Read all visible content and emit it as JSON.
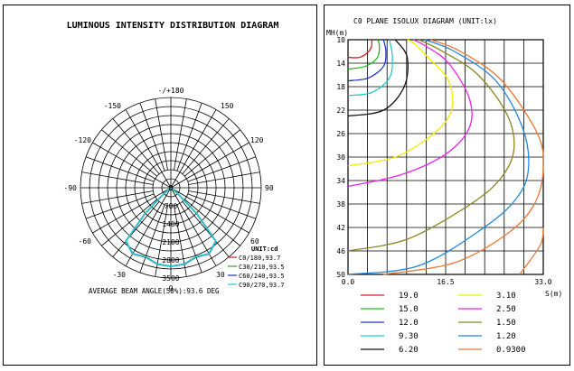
{
  "chart_data": [
    {
      "type": "polar-line",
      "title": "LUMINOUS INTENSITY DISTRIBUTION DIAGRAM",
      "angle_labels": {
        "top": "-/+180",
        "tl": "-150",
        "tr": "150",
        "ul": "-120",
        "ur": "120",
        "ml": "-90",
        "mr": "90",
        "ll": "-60",
        "lr": "60",
        "bl": "-30",
        "br": "30",
        "bottom": "0"
      },
      "radial_labels": [
        "0",
        "700",
        "1400",
        "2100",
        "2800",
        "3500"
      ],
      "rmax": 3500,
      "legend_title": "UNIT:cd",
      "series": [
        {
          "name": "C0/180,93.7",
          "color": "#cc2222",
          "angles": [
            0,
            10,
            20,
            30,
            40,
            45,
            50,
            60
          ],
          "values": [
            3050,
            3000,
            2850,
            2950,
            2700,
            1400,
            300,
            0
          ]
        },
        {
          "name": "C30/210,93.5",
          "color": "#22aa22",
          "angles": [
            0,
            10,
            20,
            30,
            40,
            45,
            50,
            60
          ],
          "values": [
            3050,
            3000,
            2850,
            2960,
            2700,
            1400,
            300,
            0
          ]
        },
        {
          "name": "C60/240,93.5",
          "color": "#2233cc",
          "angles": [
            0,
            10,
            20,
            30,
            40,
            45,
            50,
            60
          ],
          "values": [
            3050,
            3010,
            2860,
            2960,
            2710,
            1420,
            300,
            0
          ]
        },
        {
          "name": "C90/270,93.7",
          "color": "#22cccc",
          "angles": [
            0,
            10,
            20,
            30,
            40,
            45,
            50,
            60
          ],
          "values": [
            3050,
            3000,
            2850,
            2950,
            2700,
            1400,
            300,
            0
          ]
        }
      ],
      "footer": "AVERAGE BEAM ANGLE(50%):93.6 DEG"
    },
    {
      "type": "line",
      "title": "C0 PLANE ISOLUX DIAGRAM (UNIT:lx)",
      "ylabel": "MH(m)",
      "xlabel": "S(m)",
      "y_ticks": [
        "10",
        "14",
        "18",
        "22",
        "26",
        "30",
        "34",
        "38",
        "42",
        "46",
        "50"
      ],
      "x_ticks": [
        "0.0",
        "16.5",
        "33.0"
      ],
      "ylim": [
        10,
        50
      ],
      "xlim": [
        0,
        33
      ],
      "series": [
        {
          "name": "19.0",
          "color": "#dd2222",
          "x": [
            0,
            2,
            3.5,
            4,
            4
          ],
          "y": [
            13,
            13,
            12,
            11,
            10
          ]
        },
        {
          "name": "15.0",
          "color": "#22bb22",
          "x": [
            0,
            3,
            5,
            5.3,
            5
          ],
          "y": [
            15,
            14.5,
            13,
            11,
            10
          ]
        },
        {
          "name": "12.0",
          "color": "#2233cc",
          "x": [
            0,
            3.5,
            6,
            6.4,
            6
          ],
          "y": [
            17,
            16.5,
            14.5,
            12,
            10
          ]
        },
        {
          "name": "9.30",
          "color": "#22cccc",
          "x": [
            0,
            4,
            7,
            7.5,
            7
          ],
          "y": [
            19.5,
            19,
            16.5,
            13,
            10
          ]
        },
        {
          "name": "6.20",
          "color": "#111111",
          "x": [
            0,
            6,
            9.5,
            10,
            8
          ],
          "y": [
            23,
            22,
            18,
            13,
            10
          ]
        },
        {
          "name": "3.10",
          "color": "#eeee00",
          "x": [
            0,
            8,
            14.5,
            17.5,
            17,
            13.5,
            11,
            10
          ],
          "y": [
            31.5,
            30,
            26,
            22,
            17,
            13,
            10.5,
            10
          ]
        },
        {
          "name": "2.50",
          "color": "#ee22ee",
          "x": [
            0,
            9,
            16.5,
            20.5,
            20.5,
            17,
            13,
            11
          ],
          "y": [
            35,
            33,
            29.5,
            25,
            20,
            14,
            11,
            10
          ]
        },
        {
          "name": "1.50",
          "color": "#888822",
          "x": [
            0,
            10,
            20,
            25.5,
            28,
            27,
            22,
            16,
            12
          ],
          "y": [
            46,
            44,
            38.5,
            34,
            29,
            23,
            16,
            12,
            10
          ]
        },
        {
          "name": "1.20",
          "color": "#2288dd",
          "x": [
            0,
            12,
            23,
            28.5,
            30.5,
            29.5,
            25,
            18,
            13
          ],
          "y": [
            50,
            48.5,
            42,
            37,
            32,
            25,
            17,
            12,
            10
          ]
        },
        {
          "name": "0.9300",
          "color": "#ee7733",
          "x": [
            6,
            18,
            27,
            31.5,
            33,
            32,
            26,
            19,
            14
          ],
          "y": [
            50,
            48,
            43,
            38,
            32,
            26,
            17,
            12,
            10
          ]
        }
      ],
      "extra_lines": [
        {
          "color": "#ee7733",
          "x": [
            29,
            32.5,
            33
          ],
          "y": [
            50,
            45,
            42
          ]
        }
      ]
    }
  ]
}
